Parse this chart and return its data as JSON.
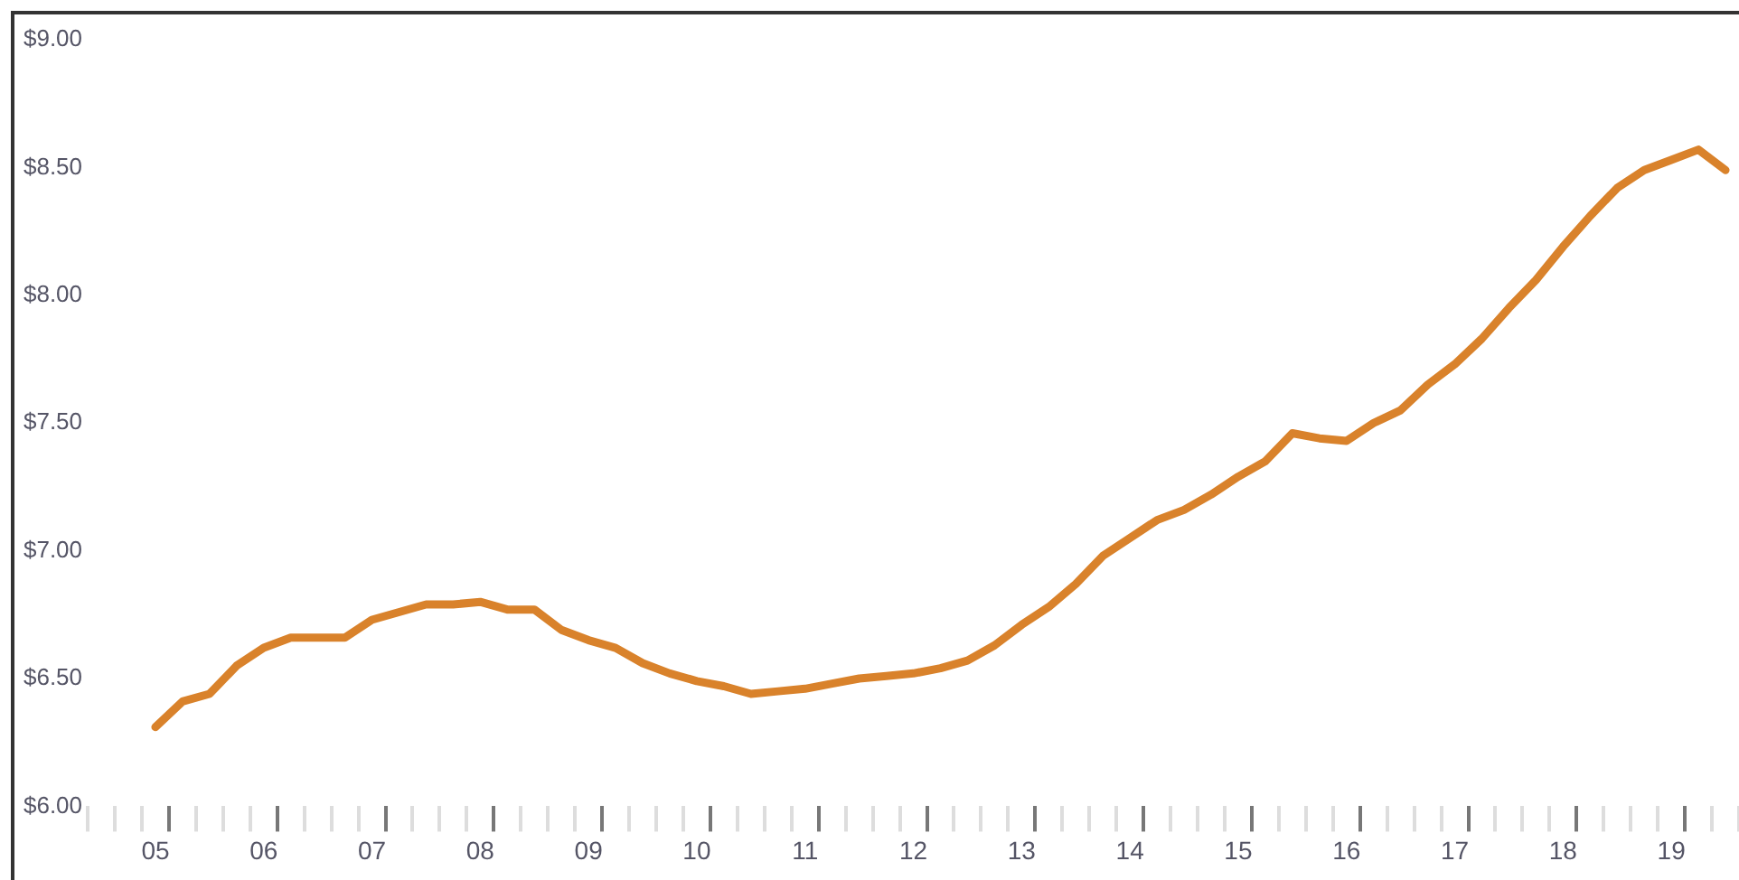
{
  "chart_data": {
    "type": "line",
    "categories": [
      null,
      null,
      "05",
      null,
      null,
      null,
      "06",
      null,
      null,
      null,
      "07",
      null,
      null,
      null,
      "08",
      null,
      null,
      null,
      "09",
      null,
      null,
      null,
      "10",
      null,
      null,
      null,
      "11",
      null,
      null,
      null,
      "12",
      null,
      null,
      null,
      "13",
      null,
      null,
      null,
      "14",
      null,
      null,
      null,
      "15",
      null,
      null,
      null,
      "16",
      null,
      null,
      null,
      "17",
      null,
      null,
      null,
      "18",
      null,
      null,
      null,
      "19",
      null,
      null
    ],
    "series": [
      {
        "color": "#d9822b",
        "values": [
          null,
          null,
          6.31,
          6.41,
          6.44,
          6.55,
          6.62,
          6.66,
          6.66,
          6.66,
          6.73,
          6.76,
          6.79,
          6.79,
          6.8,
          6.77,
          6.77,
          6.69,
          6.65,
          6.62,
          6.56,
          6.52,
          6.49,
          6.47,
          6.44,
          6.45,
          6.46,
          6.48,
          6.5,
          6.51,
          6.52,
          6.54,
          6.57,
          6.63,
          6.71,
          6.78,
          6.87,
          6.98,
          7.05,
          7.12,
          7.16,
          7.22,
          7.29,
          7.35,
          7.46,
          7.44,
          7.43,
          7.5,
          7.55,
          7.65,
          7.73,
          7.83,
          7.95,
          8.06,
          8.19,
          8.31,
          8.42,
          8.49,
          8.53,
          8.57,
          8.49
        ]
      }
    ],
    "ylim": [
      6,
      9
    ],
    "yticks": [
      {
        "value": 6,
        "label": "$6.00"
      },
      {
        "value": 6.5,
        "label": "$6.50"
      },
      {
        "value": 7,
        "label": "$7.00"
      },
      {
        "value": 7.5,
        "label": "$7.50"
      },
      {
        "value": 8,
        "label": "$8.00"
      },
      {
        "value": 8.5,
        "label": "$8.50"
      },
      {
        "value": 9,
        "label": "$9.00"
      }
    ],
    "grid": false,
    "legend": false,
    "marker": "none",
    "line_style": "solid"
  }
}
